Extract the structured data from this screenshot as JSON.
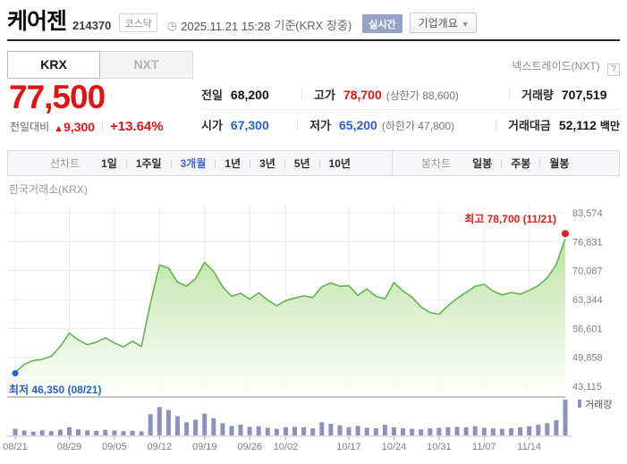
{
  "header": {
    "stock_name": "케어젠",
    "stock_code": "214370",
    "market_badge": "코스닥",
    "clock_icon": "◷",
    "timestamp": "2025.11.21 15:28",
    "timestamp_suffix": "기준(KRX 장중)",
    "realtime_badge": "실시간",
    "company_overview_button": "기업개요",
    "dropdown_arrow": "▼"
  },
  "tabs": {
    "krx": "KRX",
    "nxt": "NXT",
    "right_link": "넥스트레이드(NXT)",
    "help_icon": "?"
  },
  "price": {
    "current": "77,500",
    "change_label": "전일대비",
    "change_arrow": "▲",
    "change_value": "9,300",
    "divider": "|",
    "change_percent": "+13.64%"
  },
  "summary": {
    "rows": [
      [
        {
          "label": "전일",
          "value": "68,200",
          "value_class": ""
        },
        {
          "label": "고가",
          "value": "78,700",
          "value_class": "red",
          "sub": "(상한가 88,600)"
        },
        {
          "label": "거래량",
          "value": "707,519",
          "value_class": ""
        }
      ],
      [
        {
          "label": "시가",
          "value": "67,300",
          "value_class": "blue"
        },
        {
          "label": "저가",
          "value": "65,200",
          "value_class": "blue",
          "sub": "(하한가 47,800)"
        },
        {
          "label": "거래대금",
          "value": "52,112",
          "value_class": "",
          "unit": "백만"
        }
      ]
    ]
  },
  "toolbar": {
    "line_label": "선차트",
    "periods": [
      {
        "label": "1일",
        "selected": false
      },
      {
        "label": "1주일",
        "selected": false
      },
      {
        "label": "3개월",
        "selected": true
      },
      {
        "label": "1년",
        "selected": false
      },
      {
        "label": "3년",
        "selected": false
      },
      {
        "label": "5년",
        "selected": false
      },
      {
        "label": "10년",
        "selected": false
      }
    ],
    "candle_label": "봉차트",
    "candles": [
      "일봉",
      "주봉",
      "월봉"
    ]
  },
  "chart_data": {
    "type": "area",
    "title": "한국거래소(KRX)",
    "x_tick_labels": [
      "08/21",
      "08/29",
      "09/05",
      "09/12",
      "09/19",
      "09/26",
      "10/02",
      "10/17",
      "10/24",
      "10/31",
      "11/07",
      "11/14"
    ],
    "x_tick_indices": [
      0,
      6,
      11,
      16,
      21,
      26,
      30,
      37,
      42,
      47,
      52,
      57
    ],
    "y_ticks": [
      83574,
      76831,
      70087,
      63344,
      56601,
      49858,
      43115
    ],
    "y_tick_labels": [
      "83,574",
      "76,831",
      "70,087",
      "63,344",
      "56,601",
      "49,858",
      "43,115"
    ],
    "prices": [
      46350,
      48200,
      49100,
      49400,
      50100,
      52400,
      55500,
      53900,
      52800,
      53400,
      54400,
      53200,
      52300,
      53600,
      52400,
      62500,
      71400,
      70700,
      67400,
      66500,
      68200,
      72000,
      69900,
      66300,
      64100,
      64800,
      63400,
      64900,
      63200,
      61900,
      63100,
      63700,
      64200,
      63800,
      66300,
      67200,
      66400,
      66600,
      64300,
      65800,
      64100,
      63500,
      67300,
      65300,
      63900,
      61600,
      60300,
      59900,
      61900,
      63600,
      65000,
      66400,
      66900,
      65300,
      64400,
      65000,
      64600,
      65500,
      66600,
      68400,
      71500,
      77500
    ],
    "volumes": [
      130,
      95,
      75,
      100,
      85,
      115,
      160,
      120,
      100,
      90,
      110,
      95,
      85,
      90,
      80,
      420,
      560,
      500,
      380,
      260,
      310,
      430,
      340,
      240,
      190,
      210,
      170,
      180,
      150,
      130,
      160,
      170,
      160,
      140,
      260,
      230,
      200,
      160,
      190,
      150,
      140,
      210,
      160,
      140,
      130,
      120,
      140,
      150,
      160,
      170,
      160,
      180,
      150,
      140,
      130,
      140,
      160,
      180,
      210,
      240,
      300,
      707
    ],
    "high_annotation": {
      "text": "최고 78,700 (11/21)",
      "value": 78700
    },
    "low_annotation": {
      "text": "최저 46,350 (08/21)",
      "value": 46350
    },
    "volume_legend": "거래량",
    "colors": {
      "line": "#62b44e",
      "fill_top": "#b9e19e",
      "fill_bottom": "#ffffff",
      "volume": "#8f90bf",
      "high": "#e0201c",
      "low": "#2a62c4",
      "grid": "#ececec",
      "axis": "#c3c3c3",
      "pane_border": "#8a8a8a",
      "tick_text": "#808080"
    }
  }
}
